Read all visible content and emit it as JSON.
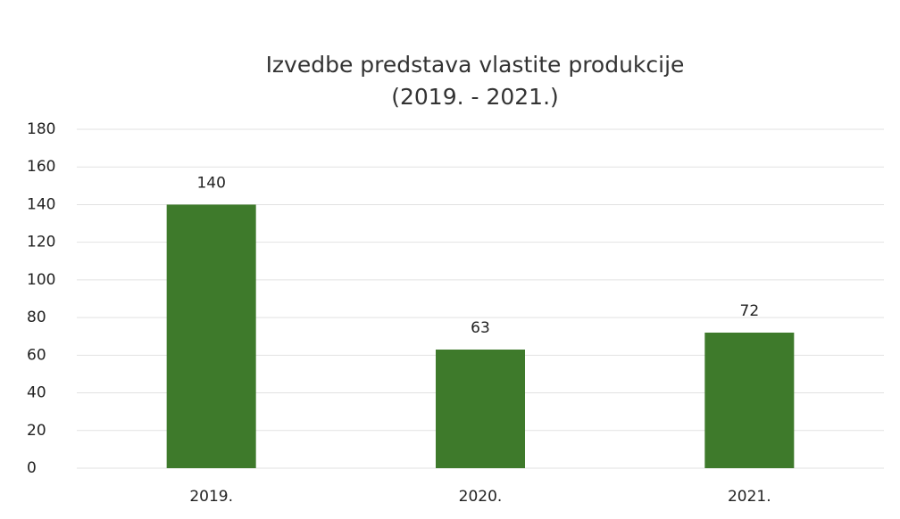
{
  "chart_data": {
    "type": "bar",
    "title": "Izvedbe predstava vlastite produkcije",
    "subtitle": "(2019. - 2021.)",
    "categories": [
      "2019.",
      "2020.",
      "2021."
    ],
    "values": [
      140,
      63,
      72
    ],
    "color": "#3e7a2b",
    "ylim": [
      0,
      180
    ],
    "yticks": [
      0,
      20,
      40,
      60,
      80,
      100,
      120,
      140,
      160,
      180
    ],
    "grid": true
  }
}
